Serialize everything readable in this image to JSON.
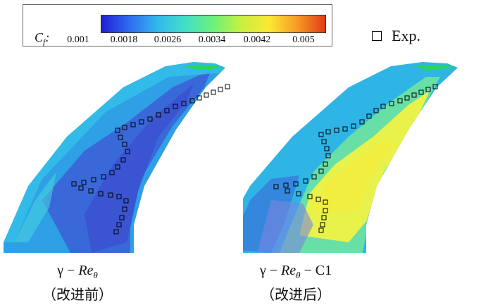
{
  "colorbar": {
    "label_main": "C",
    "label_sub": "f",
    "label_colon": ":",
    "ticks": [
      "0.001",
      "0.0018",
      "0.0026",
      "0.0034",
      "0.0042",
      "0.005"
    ],
    "range": [
      0.001,
      0.005
    ],
    "colors": [
      "#1f1fd6",
      "#2f6cf0",
      "#33b8ec",
      "#40e0c8",
      "#6df07a",
      "#c9f040",
      "#fbe733",
      "#f69a24",
      "#e03b17"
    ]
  },
  "legend": {
    "label": "Exp."
  },
  "panels": [
    {
      "caption_gamma": "γ − ",
      "caption_re": "Re",
      "caption_sub": "θ",
      "caption_suffix": "",
      "caption_line2": "（改进前）"
    },
    {
      "caption_gamma": "γ − ",
      "caption_re": "Re",
      "caption_sub": "θ",
      "caption_suffix": " − C1",
      "caption_line2": "（改进后）"
    }
  ]
}
